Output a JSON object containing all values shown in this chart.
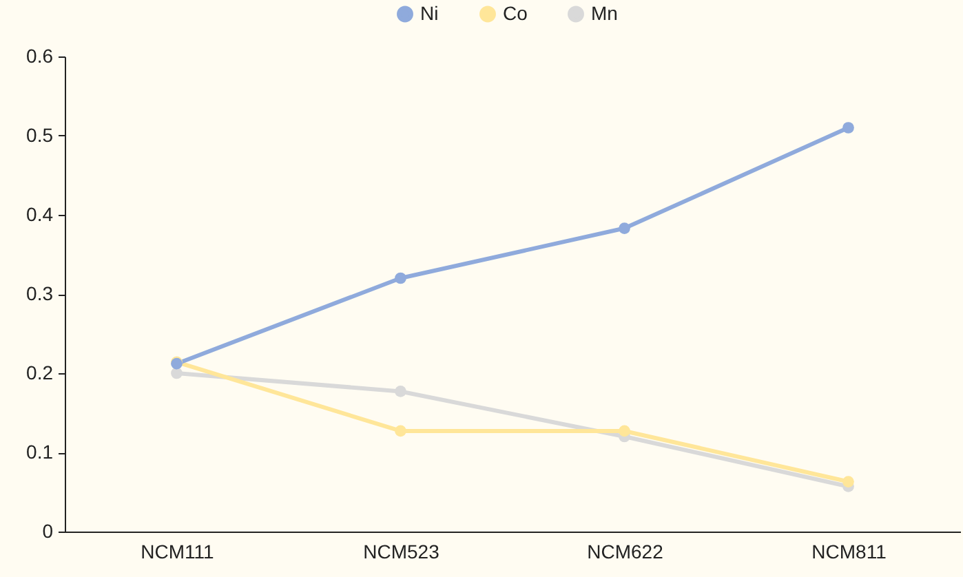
{
  "chart_data": {
    "type": "line",
    "categories": [
      "NCM111",
      "NCM523",
      "NCM622",
      "NCM811"
    ],
    "series": [
      {
        "name": "Ni",
        "color": "#8faadc",
        "values": [
          0.212,
          0.32,
          0.383,
          0.51
        ]
      },
      {
        "name": "Co",
        "color": "#ffe699",
        "values": [
          0.214,
          0.127,
          0.127,
          0.063
        ]
      },
      {
        "name": "Mn",
        "color": "#d9d9d9",
        "values": [
          0.2,
          0.177,
          0.12,
          0.057
        ]
      }
    ],
    "ylim": [
      0,
      0.6
    ],
    "yticks": [
      0,
      0.1,
      0.2,
      0.3,
      0.4,
      0.5,
      0.6
    ],
    "grid": false,
    "legend": "top",
    "marker": "circle",
    "line_style": "solid"
  }
}
